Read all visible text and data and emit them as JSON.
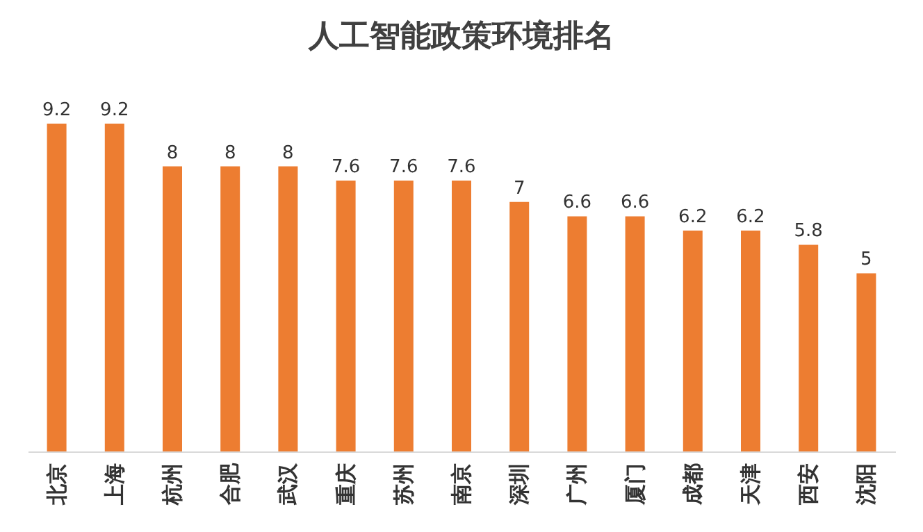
{
  "chart_data": {
    "type": "bar",
    "title": "人工智能政策环境排名",
    "categories": [
      "北京",
      "上海",
      "杭州",
      "合肥",
      "武汉",
      "重庆",
      "苏州",
      "南京",
      "深圳",
      "广州",
      "厦门",
      "成都",
      "天津",
      "西安",
      "沈阳"
    ],
    "values": [
      9.2,
      9.2,
      8,
      8,
      8,
      7.6,
      7.6,
      7.6,
      7,
      6.6,
      6.6,
      6.2,
      6.2,
      5.8,
      5
    ],
    "color": "#ed7d31",
    "data_labels": true
  }
}
